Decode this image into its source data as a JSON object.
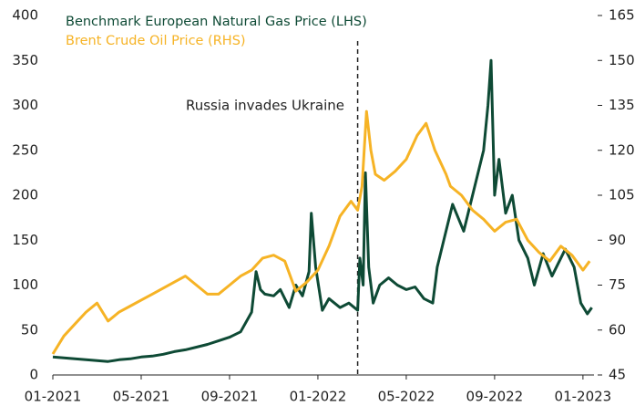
{
  "chart_data": {
    "type": "line",
    "annotation": "Russia invades Ukraine",
    "event_x": 13.8,
    "xlim": [
      0,
      24.5
    ],
    "xticks": [
      {
        "value": 0,
        "label": "01-2021"
      },
      {
        "value": 4,
        "label": "05-2021"
      },
      {
        "value": 8,
        "label": "09-2021"
      },
      {
        "value": 12,
        "label": "01-2022"
      },
      {
        "value": 16,
        "label": "05-2022"
      },
      {
        "value": 20,
        "label": "09-2022"
      },
      {
        "value": 24,
        "label": "01-2023"
      }
    ],
    "ylim": [
      0,
      400
    ],
    "yticks": [
      0,
      50,
      100,
      150,
      200,
      250,
      300,
      350,
      400
    ],
    "y2lim": [
      45,
      165
    ],
    "y2ticks": [
      45,
      60,
      75,
      90,
      105,
      120,
      135,
      150,
      165
    ],
    "series": [
      {
        "name": "Benchmark European Natural Gas Price (LHS)",
        "color": "#0e4a35",
        "x": [
          0,
          0.5,
          1,
          1.5,
          2,
          2.5,
          3,
          3.5,
          4,
          4.5,
          5,
          5.5,
          6,
          6.5,
          7,
          7.5,
          8,
          8.5,
          9,
          9.2,
          9.4,
          9.6,
          10,
          10.3,
          10.7,
          11,
          11.3,
          11.6,
          11.7,
          11.9,
          12.2,
          12.5,
          13,
          13.4,
          13.8,
          13.9,
          14.05,
          14.15,
          14.3,
          14.5,
          14.8,
          15.2,
          15.6,
          16,
          16.4,
          16.8,
          17.2,
          17.4,
          17.7,
          18.1,
          18.6,
          19,
          19.5,
          19.7,
          19.84,
          20,
          20.2,
          20.5,
          20.8,
          21.1,
          21.5,
          21.8,
          22.2,
          22.6,
          23.2,
          23.6,
          23.9,
          24.2,
          24.4
        ],
        "values": [
          20,
          19,
          18,
          17,
          16,
          15,
          17,
          18,
          20,
          21,
          23,
          26,
          28,
          31,
          34,
          38,
          42,
          48,
          70,
          115,
          95,
          90,
          88,
          95,
          75,
          100,
          88,
          115,
          180,
          120,
          72,
          85,
          75,
          80,
          72,
          130,
          100,
          225,
          120,
          80,
          100,
          108,
          100,
          95,
          98,
          85,
          80,
          120,
          150,
          190,
          160,
          200,
          250,
          300,
          350,
          200,
          240,
          180,
          200,
          150,
          130,
          100,
          135,
          110,
          140,
          120,
          80,
          68,
          75
        ]
      },
      {
        "name": "Brent Crude Oil Price (RHS)",
        "color": "#f6b325",
        "axis": "y2",
        "x": [
          0,
          0.5,
          1,
          1.5,
          2,
          2.5,
          3,
          3.5,
          4,
          4.5,
          5,
          5.5,
          6,
          6.5,
          7,
          7.5,
          8,
          8.5,
          9,
          9.5,
          10,
          10.5,
          11,
          11.5,
          12,
          12.5,
          13,
          13.5,
          13.8,
          14,
          14.2,
          14.4,
          14.6,
          15,
          15.5,
          16,
          16.5,
          16.9,
          17.3,
          17.8,
          18,
          18.5,
          19,
          19.5,
          20,
          20.5,
          21,
          21.5,
          22,
          22.5,
          23,
          23.5,
          24,
          24.3
        ],
        "values": [
          52,
          58,
          62,
          66,
          69,
          63,
          66,
          68,
          70,
          72,
          74,
          76,
          78,
          75,
          72,
          72,
          75,
          78,
          80,
          84,
          85,
          83,
          73,
          76,
          80,
          88,
          98,
          103,
          100,
          108,
          133,
          120,
          112,
          110,
          113,
          117,
          125,
          129,
          120,
          112,
          108,
          105,
          100,
          97,
          93,
          96,
          97,
          90,
          86,
          83,
          88,
          85,
          80,
          83
        ]
      }
    ]
  }
}
